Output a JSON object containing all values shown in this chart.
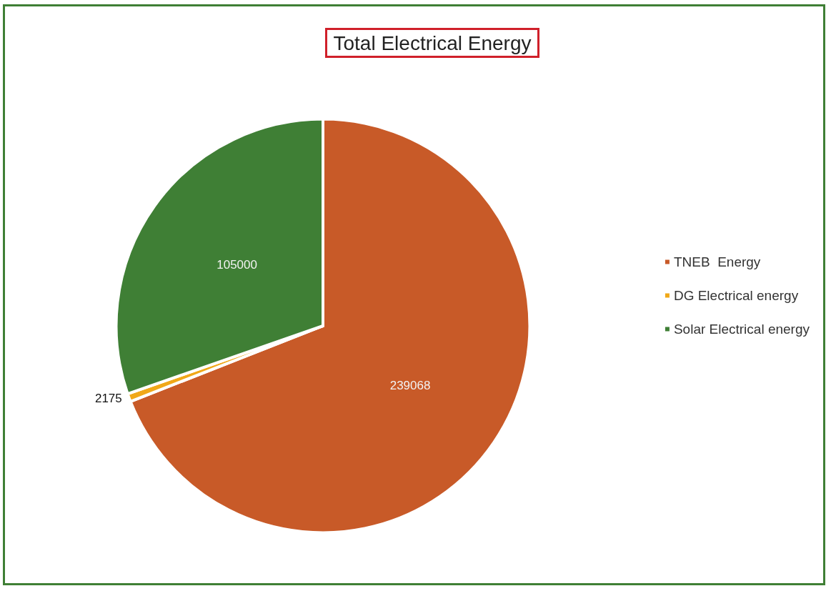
{
  "chart_data": {
    "type": "pie",
    "title": "Total Electrical Energy",
    "categories": [
      "TNEB  Energy",
      "DG Electrical energy",
      "Solar Electrical energy"
    ],
    "values": [
      239068,
      2175,
      105000
    ],
    "colors": [
      "#c85a28",
      "#f0a818",
      "#3f7f35"
    ],
    "data_labels": true,
    "legend": "right"
  }
}
